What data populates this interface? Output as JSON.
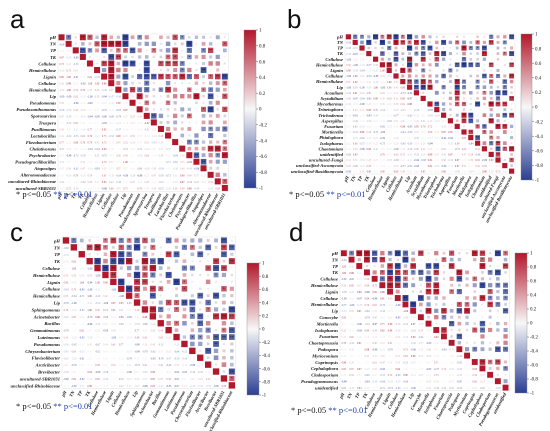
{
  "chart_data": [
    {
      "type": "heatmap",
      "panel": "a",
      "rows": [
        "pH",
        "TN",
        "TP",
        "TK",
        "Cellulose",
        "Hemicellulose",
        "Lignin",
        "Cellulase",
        "Hemicellulase",
        "Lip",
        "Pseudomonas",
        "Pseudoxanthomonas",
        "Sporosarcina",
        "Truepera",
        "Pusillimonas",
        "Lactobacillus",
        "Flavobacterium",
        "Chelativorans",
        "Psychrobacter",
        "Pseudogracilibacillus",
        "Atopostipes",
        "Alteromonadaceae",
        "uncultured-Rhizobiaceae",
        "uncultured-SBR1031"
      ],
      "cols": [
        "pH",
        "TN",
        "TP",
        "TK",
        "Cellulose",
        "Hemicellulose",
        "Lignin",
        "Cellulase",
        "Hemicellulase",
        "Lip",
        "Pseudomonas",
        "Pseudoxanthomonas",
        "Sporosarcina",
        "Truepera",
        "Pusillimonas",
        "Lactobacillus",
        "Flavobacterium",
        "Chelativorans",
        "Psychrobacter",
        "Pseudogracilibacillus",
        "Atopostipes",
        "Alteromonadaceae",
        "uncultured-Rhizobiaceae",
        "uncultured-SBR1031"
      ],
      "colorbar": {
        "ticks": [
          "1",
          "0.8",
          "0.6",
          "0.4",
          "0.2",
          "0",
          "-0.2",
          "-0.4",
          "-0.6",
          "-0.8",
          "-1"
        ]
      },
      "footnote": {
        "p1": "* p<=0.05",
        "p2": "** p<=0.01"
      },
      "seed": 3
    },
    {
      "type": "heatmap",
      "panel": "b",
      "rows": [
        "pH",
        "TN",
        "TP",
        "TK",
        "Cellulose",
        "Hemicellulose",
        "Lignin",
        "Cellulase",
        "Hemicellulase",
        "Lip",
        "Acaulium",
        "Scytalidium",
        "Mycothermus",
        "Trinetophora",
        "Trichoderma",
        "Aspergillus",
        "Fusarium",
        "Mortierella",
        "Phialophora",
        "Isolophaeus",
        "Chaetomium",
        "unidentified",
        "uncultured-Fungi",
        "unclassified-Ascomycota",
        "unclassified-Basidiomycota"
      ],
      "cols": [
        "pH",
        "TN",
        "TP",
        "TK",
        "Cellulose",
        "Hemicellulose",
        "Lignin",
        "Cellulase",
        "Hemicellulase",
        "Lip",
        "Acaulium",
        "Scytalidium",
        "Mycothermus",
        "Trinetophora",
        "Trichoderma",
        "Aspergillus",
        "Fusarium",
        "Mortierella",
        "Phialophora",
        "Isolophaeus",
        "Chaetomium",
        "unidentified",
        "uncultured-Fungi",
        "unclassified-Ascomycota",
        "unclassified-Basidiomycota"
      ],
      "colorbar": {
        "ticks": [
          "1",
          "0.8",
          "0.6",
          "0.4",
          "0.2",
          "0",
          "-0.2",
          "-0.4",
          "-0.6",
          "-0.8",
          "-1"
        ]
      },
      "footnote": {
        "p1": "* p<=0.05",
        "p2": "** p<=0.01"
      },
      "seed": 11
    },
    {
      "type": "heatmap",
      "panel": "c",
      "rows": [
        "pH",
        "TN",
        "TP",
        "TK",
        "Cellulose",
        "Hemicellulose",
        "Lignin",
        "Cellulase",
        "Hemicellulase",
        "Lip",
        "Sphingomonas",
        "Acinetobacter",
        "Bacillus",
        "Gemmatimonas",
        "Luteimonas",
        "Pseudomonas",
        "Chryseobacterium",
        "Flavisolibacter",
        "Arcticibacter",
        "Brevibacter",
        "uncultured-SBR1031",
        "unclassified-Rhizobiaceae"
      ],
      "cols": [
        "pH",
        "TN",
        "TP",
        "TK",
        "Cellulose",
        "Hemicellulose",
        "Lignin",
        "Cellulase",
        "Hemicellulase",
        "Lip",
        "Sphingomonas",
        "Acinetobacter",
        "Bacillus",
        "Gemmatimonas",
        "Luteimonas",
        "Pseudomonas",
        "Chryseobacterium",
        "Flavisolibacter",
        "Arcticibacter",
        "Brevibacter",
        "uncultured-SBR1031",
        "unclassified-Rhizobiaceae"
      ],
      "colorbar": {
        "ticks": [
          "1",
          "0.8",
          "0.6",
          "0.4",
          "0.2",
          "0",
          "-0.2",
          "-0.4",
          "-0.6",
          "-0.8",
          "-1"
        ]
      },
      "footnote": {
        "p1": "* p<=0.05",
        "p2": "** p<=0.01"
      },
      "seed": 23
    },
    {
      "type": "heatmap",
      "panel": "d",
      "rows": [
        "pH",
        "TN",
        "TP",
        "TK",
        "Cellulose",
        "Hemicellulose",
        "Lignin",
        "Cellulase",
        "Hemicellulase",
        "Lip",
        "Conocybe",
        "Mortierella",
        "Isolophaeus",
        "Fusarium",
        "Chaetopreussia",
        "Podospora",
        "Myrioconium",
        "Coprinopsis",
        "Cephalophora",
        "Cladosporium",
        "Pseudogymnoascus",
        "unidentified"
      ],
      "cols": [
        "pH",
        "TN",
        "TP",
        "TK",
        "Cellulose",
        "Hemicellulose",
        "Lignin",
        "Cellulase",
        "Hemicellulase",
        "Lip",
        "Conocybe",
        "Mortierella",
        "Isolophaeus",
        "Fusarium",
        "Chaetopreussia",
        "Podospora",
        "Myrioconium",
        "Coprinopsis",
        "Cephalophora",
        "Cladosporium",
        "Pseudogymnoascus",
        "unidentified"
      ],
      "colorbar": {
        "ticks": [
          "1",
          "0.8",
          "0.6",
          "0.4",
          "0.2",
          "0",
          "-0.2",
          "-0.4",
          "-0.6",
          "-0.8",
          "-1"
        ]
      },
      "footnote": {
        "p1": "* p<=0.05",
        "p2": "** p<=0.01"
      },
      "seed": 41
    }
  ],
  "panels": [
    {
      "letter": "a"
    },
    {
      "letter": "b"
    },
    {
      "letter": "c"
    },
    {
      "letter": "d"
    }
  ],
  "colors": {
    "positive": "#b2182b",
    "neutral": "#f7f7f7",
    "negative": "#2b3f93"
  }
}
